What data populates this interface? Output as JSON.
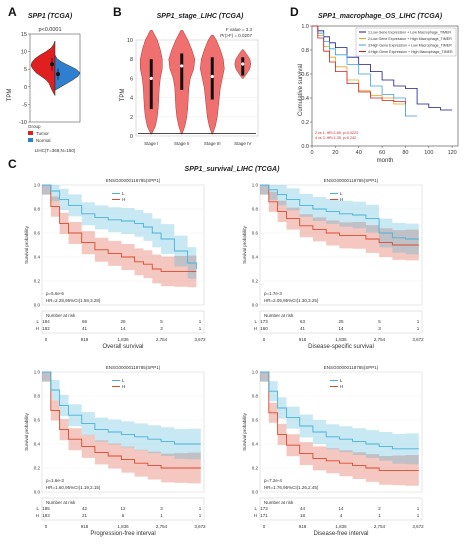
{
  "panels": {
    "A": {
      "letter": "A",
      "title": "SPP1 (TCGA)",
      "pvalue": "p<0.0001",
      "ylabel": "TPM",
      "yticks": [
        -10,
        -5,
        0,
        5,
        10,
        15
      ],
      "legend_title": "Group",
      "legend": [
        "Tumor",
        "Normal"
      ],
      "xlabel": "LIHC(T=369,N=160)",
      "colors": {
        "tumor": "#e02020",
        "normal": "#2f7fd0"
      }
    },
    "B": {
      "letter": "B",
      "title": "SPP1_stage_LIHC (TCGA)",
      "fvalue": "F value = 3.3",
      "pr": "Pr(>F) = 0.0207",
      "ylabel": "TPM",
      "yticks": [
        0,
        2,
        4,
        6,
        8,
        10
      ],
      "color": "#f07070"
    },
    "D": {
      "letter": "D",
      "title": "SPP1_macrophage_OS_LIHC (TCGA)",
      "ylabel": "Cumulative survival",
      "xlabel": "month",
      "yticks": [
        "0.0",
        "0.2",
        "0.4",
        "0.6",
        "0.8",
        "1.0"
      ],
      "legend": [
        {
          "label": "1:Low Gene Expression + Low Macrophage_TIMER",
          "color": "#1a1a8c"
        },
        {
          "label": "2:Low Gene Expression + High Macrophage_TIMER",
          "color": "#e8a020"
        },
        {
          "label": "3:High Gene Expression + Low Macrophage_TIMER",
          "color": "#3aa0e0"
        },
        {
          "label": "4:High Gene Expression + High Macrophage_TIMER",
          "color": "#d02020"
        }
      ],
      "stats": [
        "2 vs 1: HR=1.69, p=0.0223",
        "4 vs 3: HR=1.35, p=0.242"
      ]
    },
    "C": {
      "letter": "C",
      "title": "SPP1_survival_LIHC (TCGA)",
      "colors": {
        "L": "#49b2d8",
        "H": "#d94a30"
      },
      "legend_labels": [
        "L",
        "H"
      ],
      "ylabel": "Survival probability",
      "risk_title": "Number at risk"
    }
  },
  "chart_data": [
    {
      "type": "violin",
      "panel": "A",
      "categories": [
        "Tumor",
        "Normal"
      ],
      "ylim": [
        -10,
        15
      ],
      "yticks": [
        -10,
        -5,
        0,
        5,
        10,
        15
      ],
      "medians": [
        6.4,
        3.6
      ]
    },
    {
      "type": "violin",
      "panel": "B",
      "categories": [
        "Stage I",
        "Stage II",
        "Stage III",
        "Stage IV"
      ],
      "ylim": [
        0,
        10
      ],
      "yticks": [
        0,
        2,
        4,
        6,
        8,
        10
      ],
      "medians": [
        6.0,
        7.3,
        6.2,
        7.5
      ],
      "box_q1": [
        2.8,
        4.8,
        3.8,
        6.3
      ],
      "box_q3": [
        8.0,
        8.6,
        8.2,
        8.2
      ]
    },
    {
      "type": "line",
      "panel": "D",
      "xlim": [
        0,
        125
      ],
      "xticks": [
        0,
        20,
        40,
        60,
        80,
        100,
        120
      ],
      "ylim": [
        0,
        1
      ],
      "series": [
        {
          "name": "1:Low Gene Expression + Low Macrophage_TIMER",
          "x": [
            0,
            5,
            10,
            15,
            20,
            30,
            40,
            50,
            60,
            70,
            80,
            90,
            100,
            110,
            120
          ],
          "y": [
            1.0,
            0.96,
            0.91,
            0.86,
            0.82,
            0.74,
            0.68,
            0.62,
            0.55,
            0.5,
            0.48,
            0.35,
            0.32,
            0.3,
            0.3
          ]
        },
        {
          "name": "2:Low Gene Expression + High Macrophage_TIMER",
          "x": [
            0,
            5,
            10,
            15,
            20,
            30,
            40,
            50,
            60,
            70,
            80
          ],
          "y": [
            1.0,
            0.92,
            0.83,
            0.74,
            0.66,
            0.55,
            0.46,
            0.42,
            0.4,
            0.35,
            0.25
          ]
        },
        {
          "name": "3:High Gene Expression + Low Macrophage_TIMER",
          "x": [
            0,
            5,
            10,
            15,
            20,
            30,
            40,
            50,
            60,
            70,
            80,
            90
          ],
          "y": [
            1.0,
            0.94,
            0.87,
            0.81,
            0.76,
            0.68,
            0.6,
            0.5,
            0.43,
            0.4,
            0.25,
            0.25
          ]
        },
        {
          "name": "4:High Gene Expression + High Macrophage_TIMER",
          "x": [
            0,
            5,
            10,
            15,
            20,
            30,
            40,
            50,
            60,
            70,
            80
          ],
          "y": [
            1.0,
            0.9,
            0.79,
            0.7,
            0.62,
            0.52,
            0.45,
            0.4,
            0.38,
            0.37,
            0.35
          ]
        }
      ]
    },
    {
      "type": "line",
      "title": "ENSG00000118785(SPP1)",
      "xlabel": "Overall survival",
      "xticks": [
        "0",
        "918",
        "1,836",
        "2,754",
        "3,672"
      ],
      "xlim": [
        0,
        3672
      ],
      "ylim": [
        0,
        1
      ],
      "yticks": [
        "0.0",
        "0.2",
        "0.4",
        "0.6",
        "0.8",
        "1.0"
      ],
      "pvalue": "p=5.6e-6",
      "hr": "HR=2.28,95%CI(1.58,3.28)",
      "series": [
        {
          "name": "L",
          "x": [
            0,
            200,
            400,
            600,
            900,
            1200,
            1500,
            1800,
            2100,
            2300,
            2500,
            2700,
            3000,
            3300,
            3500
          ],
          "y": [
            1.0,
            0.95,
            0.88,
            0.83,
            0.76,
            0.73,
            0.71,
            0.7,
            0.68,
            0.65,
            0.6,
            0.55,
            0.45,
            0.35,
            0.3
          ]
        },
        {
          "name": "H",
          "x": [
            0,
            200,
            400,
            600,
            900,
            1200,
            1500,
            1800,
            2100,
            2300,
            2500,
            2700,
            3000,
            3300,
            3500
          ],
          "y": [
            1.0,
            0.82,
            0.68,
            0.6,
            0.52,
            0.46,
            0.43,
            0.4,
            0.36,
            0.34,
            0.3,
            0.28,
            0.28,
            0.28,
            0.28
          ]
        }
      ],
      "risk": {
        "L": [
          "184",
          "66",
          "26",
          "5",
          "1"
        ],
        "H": [
          "182",
          "41",
          "14",
          "3",
          "1"
        ]
      }
    },
    {
      "type": "line",
      "title": "ENSG00000118785(SPP1)",
      "xlabel": "Disease-specific survival",
      "xticks": [
        "0",
        "918",
        "1,836",
        "2,754",
        "3,672"
      ],
      "xlim": [
        0,
        3672
      ],
      "ylim": [
        0,
        1
      ],
      "yticks": [
        "0.0",
        "0.2",
        "0.4",
        "0.6",
        "0.8",
        "1.0"
      ],
      "pvalue": "p=1.7e-3",
      "hr": "HR=2.05,95%CI(1.30,3.25)",
      "series": [
        {
          "name": "L",
          "x": [
            0,
            200,
            400,
            600,
            900,
            1200,
            1500,
            1800,
            2100,
            2400,
            2700,
            3000,
            3300,
            3600
          ],
          "y": [
            1.0,
            0.96,
            0.92,
            0.88,
            0.83,
            0.8,
            0.78,
            0.76,
            0.75,
            0.72,
            0.6,
            0.56,
            0.55,
            0.55
          ]
        },
        {
          "name": "H",
          "x": [
            0,
            200,
            400,
            600,
            900,
            1200,
            1500,
            1800,
            2100,
            2400,
            2700,
            3000,
            3300,
            3600
          ],
          "y": [
            1.0,
            0.86,
            0.78,
            0.72,
            0.66,
            0.63,
            0.6,
            0.58,
            0.58,
            0.55,
            0.52,
            0.5,
            0.5,
            0.5
          ]
        }
      ],
      "risk": {
        "L": [
          "173",
          "63",
          "25",
          "5",
          "1"
        ],
        "H": [
          "160",
          "41",
          "14",
          "3",
          "1"
        ]
      }
    },
    {
      "type": "line",
      "title": "ENSG00000118785(SPP1)",
      "xlabel": "Progression-free interval",
      "xticks": [
        "0",
        "918",
        "1,836",
        "2,754",
        "3,672"
      ],
      "xlim": [
        0,
        3672
      ],
      "ylim": [
        0,
        1
      ],
      "yticks": [
        "0.0",
        "0.2",
        "0.4",
        "0.6",
        "0.8",
        "1.0"
      ],
      "pvalue": "p=1.6e-3",
      "hr": "HR=1.60,95%CI(1.19,2.15)",
      "series": [
        {
          "name": "L",
          "x": [
            0,
            200,
            400,
            600,
            900,
            1200,
            1500,
            1800,
            2100,
            2400,
            2700,
            3000,
            3300,
            3600
          ],
          "y": [
            1.0,
            0.85,
            0.72,
            0.64,
            0.57,
            0.52,
            0.5,
            0.48,
            0.46,
            0.44,
            0.42,
            0.4,
            0.4,
            0.4
          ]
        },
        {
          "name": "H",
          "x": [
            0,
            200,
            400,
            600,
            900,
            1200,
            1500,
            1800,
            2100,
            2400,
            2700,
            3000,
            3300,
            3600
          ],
          "y": [
            1.0,
            0.68,
            0.52,
            0.44,
            0.38,
            0.33,
            0.3,
            0.27,
            0.24,
            0.22,
            0.2,
            0.2,
            0.2,
            0.2
          ]
        }
      ],
      "risk": {
        "L": [
          "185",
          "42",
          "12",
          "3",
          "1"
        ],
        "H": [
          "183",
          "21",
          "6",
          "1",
          "1"
        ]
      }
    },
    {
      "type": "line",
      "title": "ENSG00000118785(SPP1)",
      "xlabel": "Disease-free interval",
      "xticks": [
        "0",
        "918",
        "1,836",
        "2,754",
        "3,672"
      ],
      "xlim": [
        0,
        3672
      ],
      "ylim": [
        0,
        1
      ],
      "yticks": [
        "0.0",
        "0.2",
        "0.4",
        "0.6",
        "0.8",
        "1.0"
      ],
      "pvalue": "p=7.2e-4",
      "hr": "HR=1.76,95%CI(1.26,2.45)",
      "series": [
        {
          "name": "L",
          "x": [
            0,
            200,
            400,
            600,
            900,
            1200,
            1500,
            1800,
            2100,
            2400,
            2700,
            3000,
            3300,
            3600
          ],
          "y": [
            1.0,
            0.84,
            0.7,
            0.62,
            0.55,
            0.5,
            0.46,
            0.44,
            0.42,
            0.4,
            0.38,
            0.36,
            0.36,
            0.36
          ]
        },
        {
          "name": "H",
          "x": [
            0,
            200,
            400,
            600,
            900,
            1200,
            1500,
            1800,
            2100,
            2400,
            2700,
            3000,
            3300,
            3600
          ],
          "y": [
            1.0,
            0.66,
            0.48,
            0.39,
            0.32,
            0.28,
            0.26,
            0.24,
            0.22,
            0.2,
            0.18,
            0.18,
            0.18,
            0.18
          ]
        }
      ],
      "risk": {
        "L": [
          "173",
          "44",
          "14",
          "2",
          "1"
        ],
        "H": [
          "171",
          "18",
          "4",
          "1",
          "1"
        ]
      }
    }
  ]
}
